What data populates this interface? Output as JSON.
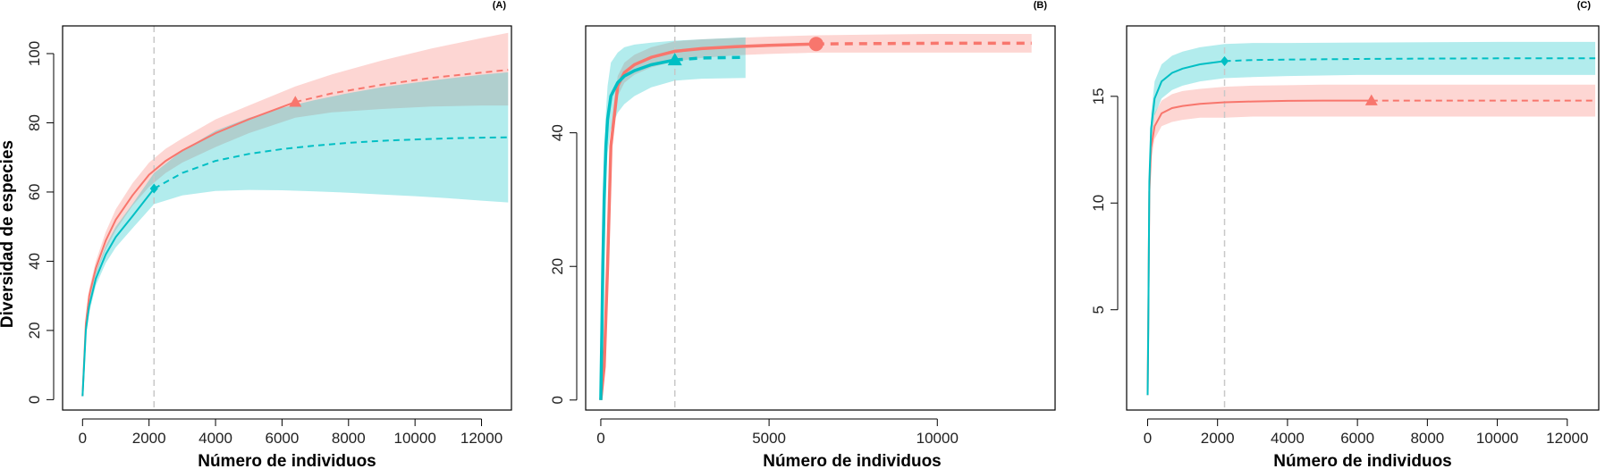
{
  "colors": {
    "red": "#F8766D",
    "cyan": "#00BFC4",
    "red_band": "#F8766D",
    "cyan_band": "#00BFC4",
    "grid_ref": "#c8c8c8"
  },
  "chart_data": [
    {
      "type": "line",
      "panel_label": "(A)",
      "xlabel": "Número de individuos",
      "ylabel": "Diversidad de especies",
      "xlim": [
        -600,
        12900
      ],
      "ylim": [
        -3,
        108
      ],
      "xticks": [
        0,
        2000,
        4000,
        6000,
        8000,
        10000,
        12000
      ],
      "yticks": [
        0,
        20,
        40,
        60,
        80,
        100
      ],
      "reference_x": 2150,
      "series": [
        {
          "color": "red",
          "marker": "triangle",
          "ref_size": 6400,
          "x": [
            0,
            100,
            200,
            400,
            700,
            1000,
            1500,
            2000,
            2500,
            3000,
            4000,
            5000,
            6400,
            7500,
            9000,
            10500,
            12000,
            12800
          ],
          "y": [
            1,
            22,
            30,
            38,
            46,
            52,
            59,
            65,
            69,
            72,
            77,
            81,
            86,
            88.5,
            91,
            93,
            94.5,
            95.3
          ],
          "lower": [
            1,
            20,
            28,
            36,
            43.5,
            49,
            56,
            61.5,
            65.5,
            68.5,
            73,
            77,
            81.5,
            83,
            84,
            84.7,
            85,
            85
          ],
          "upper": [
            1,
            24,
            32,
            40,
            48.5,
            55,
            62.5,
            68.5,
            72.5,
            75.5,
            81,
            85,
            90.5,
            94,
            98,
            101.5,
            104.5,
            106
          ]
        },
        {
          "color": "cyan",
          "marker": "diamond",
          "ref_size": 2150,
          "x": [
            0,
            100,
            200,
            400,
            700,
            1000,
            1500,
            2150,
            3000,
            4000,
            5000,
            6000,
            7000,
            8000,
            9000,
            10000,
            11000,
            12000,
            12800
          ],
          "y": [
            1,
            20,
            27,
            35,
            42,
            47,
            53,
            61,
            65.5,
            69,
            71,
            72.4,
            73.4,
            74.2,
            74.8,
            75.2,
            75.5,
            75.7,
            75.8
          ],
          "lower": [
            1,
            18.5,
            25,
            33,
            39.5,
            44,
            49.5,
            56.5,
            59,
            60.3,
            60.6,
            60.5,
            60.2,
            59.8,
            59.3,
            58.8,
            58.2,
            57.5,
            57
          ],
          "upper": [
            1,
            21.5,
            29,
            37,
            44.5,
            50,
            56.5,
            65.5,
            72,
            77.7,
            81.4,
            84.3,
            86.6,
            88.6,
            90.3,
            91.6,
            92.8,
            93.9,
            94.6
          ]
        }
      ]
    },
    {
      "type": "line",
      "panel_label": "(B)",
      "xlabel": "Número de individuos",
      "ylabel": "",
      "xlim": [
        -450,
        13500
      ],
      "ylim": [
        -1.5,
        56
      ],
      "xticks": [
        0,
        5000,
        10000
      ],
      "yticks": [
        0,
        20,
        40
      ],
      "reference_x": 2200,
      "series": [
        {
          "color": "red",
          "marker": "circle",
          "ref_size": 6400,
          "x": [
            0,
            100,
            200,
            300,
            500,
            700,
            1000,
            1500,
            2200,
            3000,
            4000,
            5000,
            6400,
            8000,
            10000,
            12000,
            12800
          ],
          "y": [
            0,
            5,
            20,
            38,
            47,
            49,
            50.2,
            51.3,
            52.2,
            52.6,
            52.9,
            53.1,
            53.3,
            53.35,
            53.4,
            53.4,
            53.4
          ],
          "lower": [
            0,
            4,
            18,
            36,
            45.5,
            47.5,
            48.7,
            49.8,
            50.7,
            51.2,
            51.6,
            51.8,
            52,
            52,
            52,
            52,
            52
          ],
          "upper": [
            0,
            6,
            22,
            40,
            48.5,
            50.5,
            51.7,
            52.8,
            53.7,
            54,
            54.2,
            54.4,
            54.6,
            54.7,
            54.8,
            54.8,
            54.8
          ]
        },
        {
          "color": "cyan",
          "marker": "triangle",
          "ref_size": 2200,
          "x": [
            0,
            30,
            60,
            100,
            150,
            200,
            300,
            500,
            700,
            1000,
            1500,
            2200,
            3000,
            4300
          ],
          "y": [
            0,
            10,
            20,
            30,
            38,
            42,
            45.5,
            47.5,
            48.5,
            49.3,
            50.2,
            50.9,
            51.2,
            51.3
          ],
          "lower": [
            0,
            8,
            17,
            26,
            33,
            37,
            40.5,
            43,
            44.3,
            45.5,
            46.8,
            47.8,
            48.1,
            48.2
          ],
          "upper": [
            0,
            12,
            23,
            34,
            43,
            47,
            50.5,
            52,
            52.8,
            53.2,
            53.5,
            53.8,
            54,
            54.3
          ]
        }
      ]
    },
    {
      "type": "line",
      "panel_label": "(C)",
      "xlabel": "Número de individuos",
      "ylabel": "",
      "xlim": [
        -600,
        12900
      ],
      "ylim": [
        0.3,
        18.3
      ],
      "xticks": [
        0,
        2000,
        4000,
        6000,
        8000,
        10000,
        12000
      ],
      "yticks": [
        5,
        10,
        15
      ],
      "reference_x": 2200,
      "series": [
        {
          "color": "red",
          "marker": "triangle",
          "ref_size": 6400,
          "x": [
            0,
            50,
            100,
            200,
            400,
            700,
            1000,
            1500,
            2200,
            3000,
            4000,
            5000,
            6400,
            8000,
            10000,
            12000,
            12800
          ],
          "y": [
            1,
            10.5,
            12.6,
            13.6,
            14.2,
            14.45,
            14.55,
            14.65,
            14.72,
            14.76,
            14.79,
            14.8,
            14.8,
            14.8,
            14.8,
            14.8,
            14.8
          ],
          "lower": [
            1,
            10,
            12,
            13,
            13.6,
            13.8,
            13.9,
            14,
            14,
            14.05,
            14.05,
            14.05,
            14.05,
            14.05,
            14.05,
            14.05,
            14.05
          ],
          "upper": [
            1,
            11,
            13.2,
            14.2,
            14.8,
            15.1,
            15.25,
            15.35,
            15.45,
            15.5,
            15.52,
            15.55,
            15.55,
            15.55,
            15.55,
            15.55,
            15.55
          ]
        },
        {
          "color": "cyan",
          "marker": "diamond",
          "ref_size": 2200,
          "x": [
            0,
            20,
            50,
            100,
            200,
            400,
            700,
            1000,
            1500,
            2200,
            3000,
            4000,
            6000,
            8000,
            10000,
            12000,
            12800
          ],
          "y": [
            1,
            4,
            11,
            13.5,
            14.9,
            15.7,
            16.1,
            16.3,
            16.5,
            16.65,
            16.7,
            16.72,
            16.75,
            16.77,
            16.78,
            16.78,
            16.78
          ],
          "lower": [
            1,
            3.5,
            10.3,
            12.8,
            14.1,
            14.9,
            15.3,
            15.5,
            15.7,
            15.85,
            15.9,
            15.95,
            16,
            16,
            16,
            16,
            16
          ],
          "upper": [
            1,
            4.5,
            11.7,
            14.2,
            15.7,
            16.5,
            16.9,
            17.1,
            17.3,
            17.45,
            17.5,
            17.5,
            17.52,
            17.54,
            17.55,
            17.55,
            17.55
          ]
        }
      ]
    }
  ]
}
